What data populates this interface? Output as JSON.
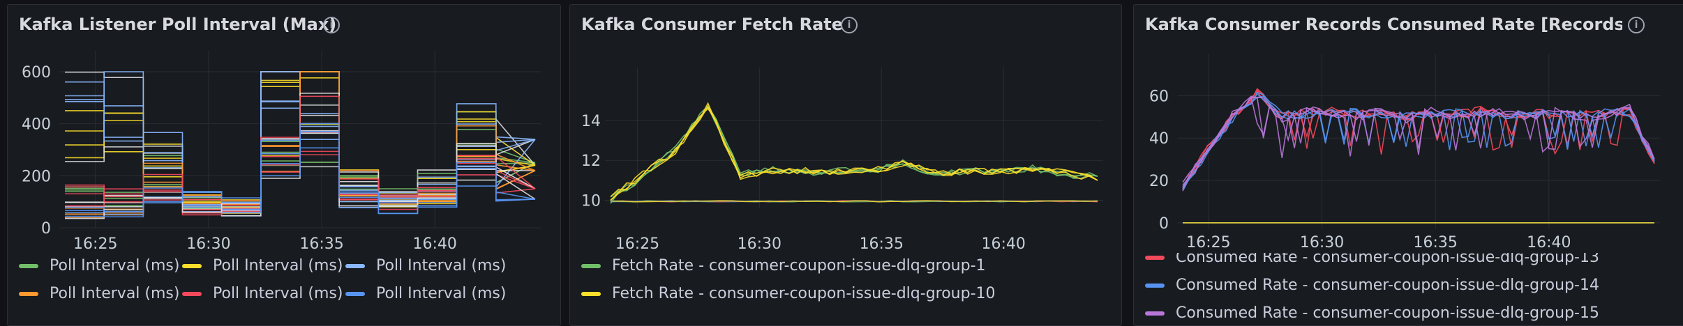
{
  "panels": [
    {
      "title": "Kafka Listener Poll Interval (Max)",
      "info_icon": "info-icon"
    },
    {
      "title": "Kafka Consumer Fetch Rate",
      "info_icon": "info-icon"
    },
    {
      "title": "Kafka Consumer Records Consumed Rate [Records/sec]",
      "title_visible": "Kafka Consumer Records Consumed Rate [Records/sec",
      "info_icon": "info-icon"
    }
  ],
  "colors": {
    "background": "#111217",
    "panel": "#181b1f",
    "green": "#73bf69",
    "yellow": "#fade2a",
    "light_blue": "#8ab8ff",
    "orange": "#ff9830",
    "red": "#f2495c",
    "blue": "#5794f2",
    "purple": "#b877d9"
  },
  "chart_data": [
    {
      "type": "line",
      "title": "Kafka Listener Poll Interval (Max)",
      "x_ticks": [
        "16:25",
        "16:30",
        "16:35",
        "16:40"
      ],
      "y_ticks": [
        "0",
        "200",
        "400",
        "600"
      ],
      "ylim": [
        0,
        600
      ],
      "series_count_visible": 6,
      "series": [
        {
          "name": "Poll Interval (ms)",
          "color": "#73bf69",
          "values": [
            140,
            130,
            230,
            95,
            85,
            330,
            380,
            150,
            140,
            160,
            330,
            220,
            250
          ]
        },
        {
          "name": "Poll Interval (ms)",
          "color": "#fade2a",
          "values": [
            330,
            340,
            250,
            100,
            80,
            440,
            600,
            200,
            130,
            150,
            350,
            300,
            240
          ]
        },
        {
          "name": "Poll Interval (ms)",
          "color": "#8ab8ff",
          "values": [
            510,
            520,
            280,
            90,
            70,
            520,
            560,
            120,
            110,
            140,
            360,
            260,
            340
          ]
        },
        {
          "name": "Poll Interval (ms)",
          "color": "#ff9830",
          "values": [
            60,
            80,
            180,
            90,
            80,
            300,
            600,
            180,
            120,
            130,
            300,
            240,
            220
          ]
        },
        {
          "name": "Poll Interval (ms)",
          "color": "#f2495c",
          "values": [
            120,
            110,
            160,
            80,
            70,
            260,
            420,
            140,
            100,
            120,
            260,
            200,
            150
          ]
        },
        {
          "name": "Poll Interval (ms)",
          "color": "#5794f2",
          "values": [
            60,
            70,
            120,
            100,
            90,
            280,
            350,
            100,
            90,
            100,
            230,
            160,
            110
          ]
        }
      ],
      "legend": [
        "Poll Interval (ms)",
        "Poll Interval (ms)",
        "Poll Interval (ms)",
        "Poll Interval (ms)",
        "Poll Interval (ms)",
        "Poll Interval (ms)"
      ],
      "legend_placement": "bottom"
    },
    {
      "type": "line",
      "title": "Kafka Consumer Fetch Rate",
      "x_ticks": [
        "16:25",
        "16:30",
        "16:35",
        "16:40"
      ],
      "y_ticks": [
        "10",
        "12",
        "14"
      ],
      "ylim": [
        9.6,
        15.6
      ],
      "series": [
        {
          "name": "Fetch Rate - consumer-coupon-issue-dlq-group-1",
          "color": "#73bf69",
          "values": [
            10.0,
            11.2,
            12.6,
            14.8,
            11.3,
            11.6,
            11.4,
            11.5,
            11.4,
            11.9,
            11.3,
            11.5,
            11.4,
            11.6,
            11.3,
            11.2
          ]
        },
        {
          "name": "Fetch Rate - consumer-coupon-issue-dlq-group-10",
          "color": "#fade2a",
          "values": [
            10.1,
            11.3,
            12.5,
            14.7,
            11.2,
            11.5,
            11.5,
            11.4,
            11.5,
            11.8,
            11.4,
            11.4,
            11.5,
            11.5,
            11.4,
            11.0
          ]
        }
      ],
      "flat_series_value": 9.95,
      "legend": [
        "Fetch Rate - consumer-coupon-issue-dlq-group-1",
        "Fetch Rate - consumer-coupon-issue-dlq-group-10"
      ],
      "legend_placement": "bottom"
    },
    {
      "type": "line",
      "title": "Kafka Consumer Records Consumed Rate [Records/sec]",
      "x_ticks": [
        "16:25",
        "16:30",
        "16:35",
        "16:40"
      ],
      "y_ticks": [
        "0",
        "20",
        "40",
        "60"
      ],
      "ylim": [
        -3,
        70
      ],
      "series": [
        {
          "name": "Consumed Rate - consumer-coupon-issue-dlq-group-13",
          "color": "#f2495c",
          "values": [
            17,
            35,
            50,
            62,
            50,
            52,
            53,
            51,
            52,
            50,
            52,
            51,
            53,
            50,
            52,
            51,
            52,
            51,
            53,
            28
          ]
        },
        {
          "name": "Consumed Rate - consumer-coupon-issue-dlq-group-14",
          "color": "#5794f2",
          "values": [
            16,
            34,
            49,
            61,
            51,
            51,
            52,
            52,
            51,
            51,
            51,
            52,
            52,
            51,
            51,
            52,
            51,
            52,
            52,
            29
          ]
        },
        {
          "name": "Consumed Rate - consumer-coupon-issue-dlq-group-15",
          "color": "#b877d9",
          "values": [
            18,
            33,
            51,
            60,
            49,
            53,
            52,
            50,
            53,
            49,
            53,
            50,
            52,
            52,
            50,
            53,
            50,
            50,
            54,
            30
          ]
        }
      ],
      "flat_series_value": 0,
      "legend": [
        "Consumed Rate - consumer-coupon-issue-dlq-group-13",
        "Consumed Rate - consumer-coupon-issue-dlq-group-14",
        "Consumed Rate - consumer-coupon-issue-dlq-group-15"
      ],
      "legend_placement": "bottom"
    }
  ]
}
